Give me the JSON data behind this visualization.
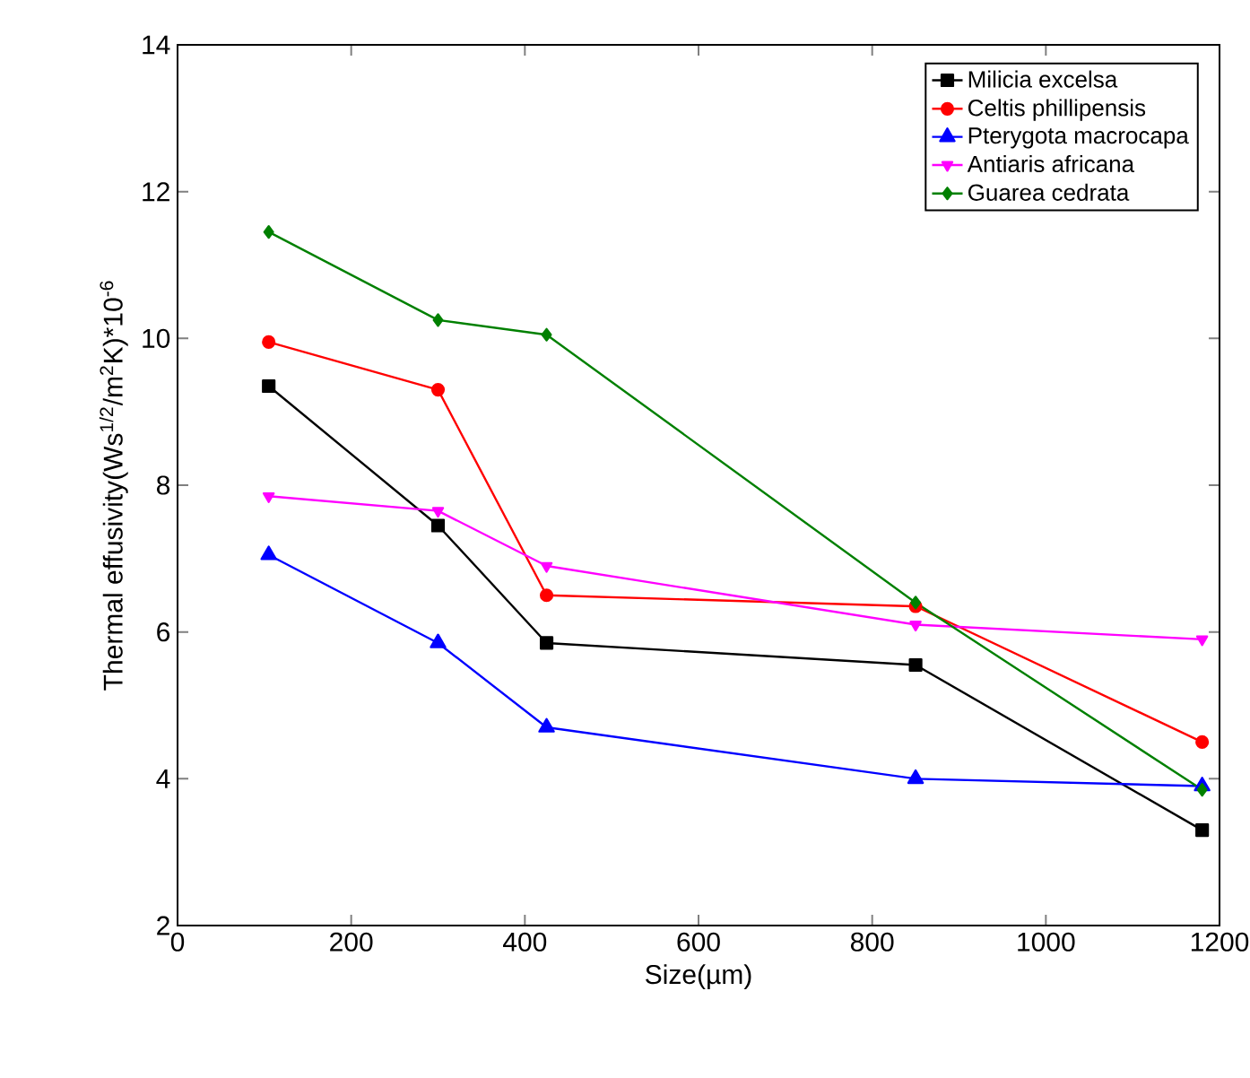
{
  "chart_data": {
    "type": "line",
    "xlabel": "Size(µm)",
    "ylabel": "Thermal effusivity(Ws$^{1/2}$/m$^{2}$K)*10$^{-6}$",
    "x": [
      105,
      300,
      425,
      850,
      1180
    ],
    "xlim": [
      0,
      1200
    ],
    "xticks": [
      0,
      200,
      400,
      600,
      800,
      1000,
      1200
    ],
    "ylim": [
      2,
      14
    ],
    "yticks": [
      2,
      4,
      6,
      8,
      10,
      12,
      14
    ],
    "grid": false,
    "legend": "top right",
    "line_style": "solid",
    "series": [
      {
        "name": "Milicia excelsa",
        "color": "#000000",
        "marker": "square",
        "values": [
          9.35,
          7.45,
          5.85,
          5.55,
          3.3
        ]
      },
      {
        "name": "Celtis phillipensis",
        "color": "#ff0000",
        "marker": "circle",
        "values": [
          9.95,
          9.3,
          6.5,
          6.35,
          4.5
        ]
      },
      {
        "name": "Pterygota macrocapa",
        "color": "#0000ff",
        "marker": "triangle",
        "values": [
          7.05,
          5.85,
          4.7,
          4.0,
          3.9
        ]
      },
      {
        "name": "Antiaris africana",
        "color": "#ff00ff",
        "marker": "triangle down",
        "values": [
          7.85,
          7.65,
          6.9,
          6.1,
          5.9
        ]
      },
      {
        "name": "Guarea cedrata",
        "color": "#008000",
        "marker": "diamond",
        "values": [
          11.45,
          10.25,
          10.05,
          6.4,
          3.85
        ]
      }
    ]
  }
}
